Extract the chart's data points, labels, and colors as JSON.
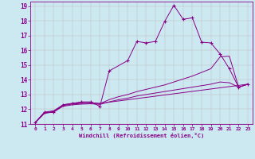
{
  "title": "",
  "xlabel": "Windchill (Refroidissement éolien,°C)",
  "ylabel": "",
  "background_color": "#cce8f0",
  "line_color": "#880088",
  "grid_color": "#bbbbbb",
  "xlim": [
    -0.5,
    23.5
  ],
  "ylim": [
    11,
    19.3
  ],
  "xticks": [
    0,
    1,
    2,
    3,
    4,
    5,
    6,
    7,
    8,
    9,
    10,
    11,
    12,
    13,
    14,
    15,
    16,
    17,
    18,
    19,
    20,
    21,
    22,
    23
  ],
  "yticks": [
    11,
    12,
    13,
    14,
    15,
    16,
    17,
    18,
    19
  ],
  "lines": [
    {
      "x": [
        0,
        1,
        2,
        3,
        4,
        5,
        6,
        7,
        8,
        10,
        11,
        12,
        13,
        14,
        15,
        16,
        17,
        18,
        19,
        20,
        21,
        22,
        23
      ],
      "y": [
        11.1,
        11.8,
        11.8,
        12.3,
        12.4,
        12.5,
        12.5,
        12.2,
        14.6,
        15.3,
        16.6,
        16.5,
        16.6,
        17.95,
        19.05,
        18.1,
        18.2,
        16.55,
        16.5,
        15.75,
        14.75,
        13.5,
        13.7
      ],
      "marker": "+"
    },
    {
      "x": [
        0,
        1,
        2,
        3,
        4,
        5,
        6,
        7,
        23
      ],
      "y": [
        11.1,
        11.8,
        11.9,
        12.3,
        12.4,
        12.45,
        12.45,
        12.4,
        13.7
      ],
      "marker": null,
      "extend_right": false
    },
    {
      "x": [
        0,
        1,
        2,
        3,
        4,
        5,
        6,
        7,
        8,
        9,
        10,
        11,
        12,
        13,
        14,
        15,
        16,
        17,
        18,
        19,
        20,
        21,
        22,
        23
      ],
      "y": [
        11.1,
        11.75,
        11.85,
        12.25,
        12.35,
        12.4,
        12.42,
        12.38,
        12.65,
        12.85,
        13.0,
        13.2,
        13.35,
        13.5,
        13.65,
        13.85,
        14.05,
        14.25,
        14.5,
        14.75,
        15.55,
        15.6,
        13.5,
        13.7
      ],
      "marker": null
    },
    {
      "x": [
        0,
        1,
        2,
        3,
        4,
        5,
        6,
        7,
        8,
        9,
        10,
        11,
        12,
        13,
        14,
        15,
        16,
        17,
        18,
        19,
        20,
        21,
        22,
        23
      ],
      "y": [
        11.1,
        11.72,
        11.82,
        12.2,
        12.3,
        12.35,
        12.37,
        12.33,
        12.5,
        12.65,
        12.75,
        12.9,
        13.0,
        13.1,
        13.2,
        13.3,
        13.4,
        13.5,
        13.6,
        13.7,
        13.85,
        13.8,
        13.5,
        13.7
      ],
      "marker": null
    }
  ]
}
